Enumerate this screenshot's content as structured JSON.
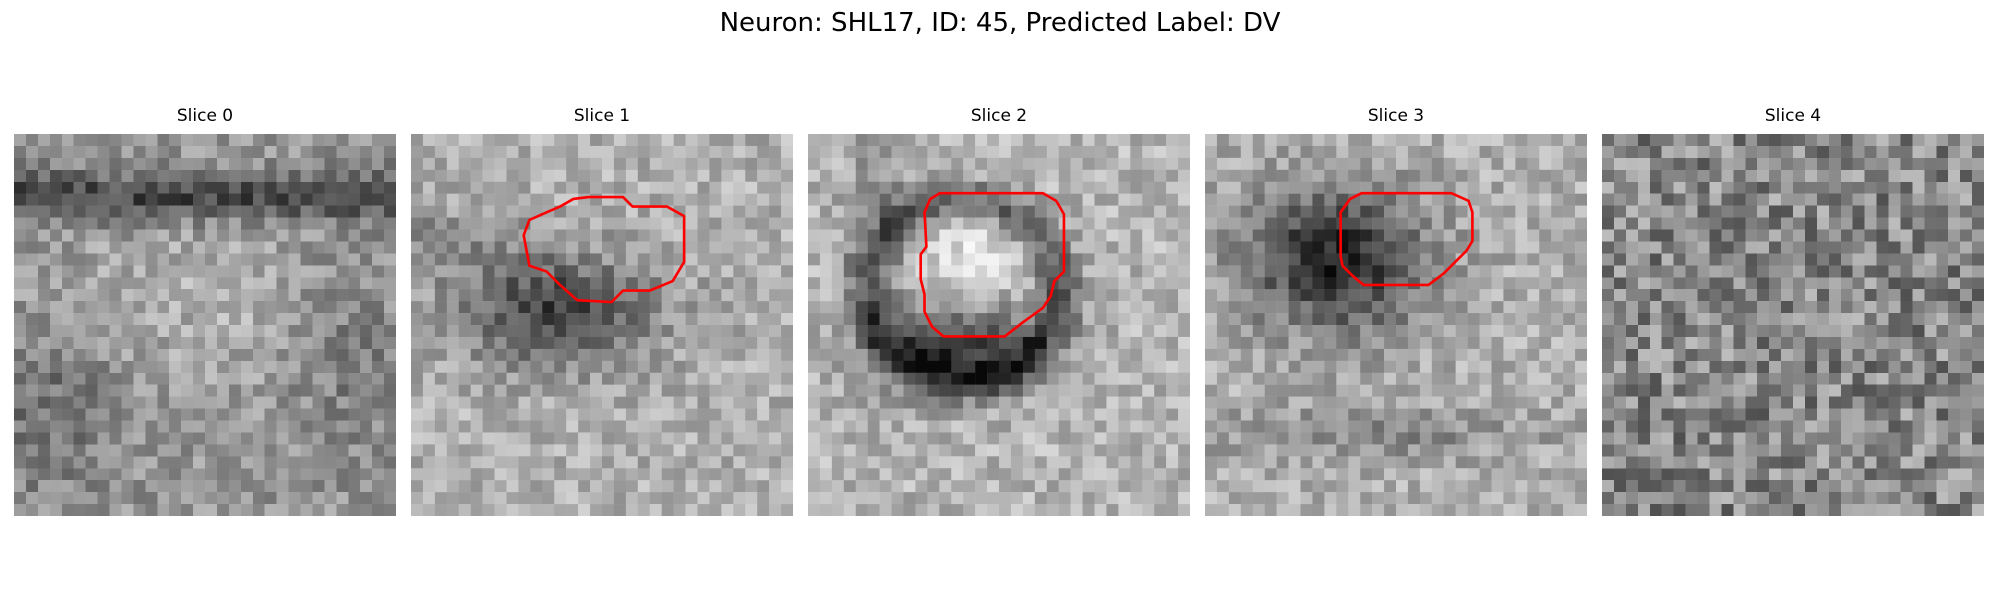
{
  "figure": {
    "title": "Neuron: SHL17, ID: 45, Predicted Label: DV"
  },
  "panels": [
    {
      "title": "Slice 0",
      "contour": null
    },
    {
      "title": "Slice 1",
      "contour": [
        [
          11.6,
          3.8
        ],
        [
          13.4,
          3.8
        ],
        [
          14.3,
          4.3
        ],
        [
          14.3,
          6.7
        ],
        [
          13.7,
          7.7
        ],
        [
          12.5,
          8.2
        ],
        [
          11.1,
          8.2
        ],
        [
          10.5,
          8.8
        ],
        [
          8.7,
          8.7
        ],
        [
          7.8,
          7.9
        ],
        [
          7.1,
          7.2
        ],
        [
          6.2,
          6.9
        ],
        [
          5.9,
          5.3
        ],
        [
          6.2,
          4.5
        ],
        [
          7.1,
          4.1
        ],
        [
          7.8,
          3.8
        ],
        [
          8.5,
          3.4
        ],
        [
          9.3,
          3.3
        ],
        [
          11.1,
          3.3
        ]
      ],
      "contour_color": "#ff0000"
    },
    {
      "title": "Slice 2",
      "contour": [
        [
          12.3,
          3.1
        ],
        [
          13.0,
          3.5
        ],
        [
          13.4,
          4.2
        ],
        [
          13.4,
          7.2
        ],
        [
          12.9,
          7.7
        ],
        [
          12.7,
          8.5
        ],
        [
          12.3,
          9.1
        ],
        [
          11.2,
          9.9
        ],
        [
          10.3,
          10.6
        ],
        [
          7.1,
          10.6
        ],
        [
          6.5,
          10.1
        ],
        [
          6.1,
          9.3
        ],
        [
          6.1,
          8.4
        ],
        [
          5.9,
          7.6
        ],
        [
          5.9,
          6.3
        ],
        [
          6.2,
          5.9
        ],
        [
          6.1,
          4.1
        ],
        [
          6.4,
          3.4
        ],
        [
          6.9,
          3.1
        ]
      ],
      "contour_color": "#ff0000"
    },
    {
      "title": "Slice 3",
      "contour": [
        [
          12.9,
          3.1
        ],
        [
          13.8,
          3.5
        ],
        [
          14.0,
          4.1
        ],
        [
          14.0,
          5.6
        ],
        [
          13.7,
          6.1
        ],
        [
          13.1,
          6.7
        ],
        [
          12.5,
          7.3
        ],
        [
          11.7,
          7.9
        ],
        [
          8.3,
          7.9
        ],
        [
          7.7,
          7.4
        ],
        [
          7.2,
          6.9
        ],
        [
          7.1,
          6.4
        ],
        [
          7.1,
          4.1
        ],
        [
          7.6,
          3.4
        ],
        [
          8.2,
          3.1
        ]
      ],
      "contour_color": "#ff0000"
    },
    {
      "title": "Slice 4",
      "contour": null
    }
  ],
  "style": {
    "contour_color": "#ff0000",
    "colormap": "gray"
  }
}
